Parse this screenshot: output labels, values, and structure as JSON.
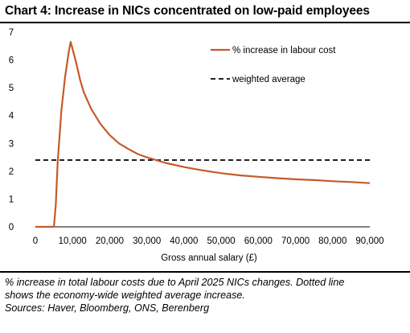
{
  "header": {
    "title": "Chart 4: Increase in NICs concentrated on low-paid employees"
  },
  "chart_data": {
    "type": "line",
    "title": "",
    "xlabel": "Gross annual salary (£)",
    "ylabel": "",
    "xlim": [
      0,
      90000
    ],
    "ylim": [
      0,
      7
    ],
    "xticks": [
      "0",
      "10,000",
      "20,000",
      "30,000",
      "40,000",
      "50,000",
      "60,000",
      "70,000",
      "80,000",
      "90,000"
    ],
    "yticks": [
      "0",
      "1",
      "2",
      "3",
      "4",
      "5",
      "6",
      "7"
    ],
    "grid": false,
    "legend_position": "top-right",
    "series": [
      {
        "name": "% increase in labour cost",
        "style": "solid",
        "color": "#C55A2B",
        "x": [
          0,
          5000,
          5500,
          6000,
          7000,
          8000,
          9000,
          9500,
          10000,
          11000,
          12000,
          13000,
          15000,
          17500,
          20000,
          22500,
          25000,
          27500,
          30000,
          35000,
          40000,
          45000,
          50000,
          55000,
          60000,
          65000,
          70000,
          75000,
          80000,
          85000,
          90000
        ],
        "y": [
          0,
          0,
          0.8,
          2.3,
          4.2,
          5.4,
          6.3,
          6.65,
          6.4,
          5.9,
          5.3,
          4.85,
          4.25,
          3.7,
          3.3,
          3.0,
          2.8,
          2.62,
          2.5,
          2.3,
          2.15,
          2.03,
          1.93,
          1.85,
          1.8,
          1.75,
          1.71,
          1.68,
          1.64,
          1.61,
          1.57
        ]
      },
      {
        "name": "weighted average",
        "style": "dashed",
        "color": "#000000",
        "x": [
          0,
          90000
        ],
        "y": [
          2.4,
          2.4
        ]
      }
    ]
  },
  "footer": {
    "notes": [
      "% increase in total labour costs due to April 2025 NICs changes. Dotted line",
      "shows the economy-wide weighted average increase.",
      "Sources: Haver, Bloomberg, ONS, Berenberg"
    ]
  }
}
